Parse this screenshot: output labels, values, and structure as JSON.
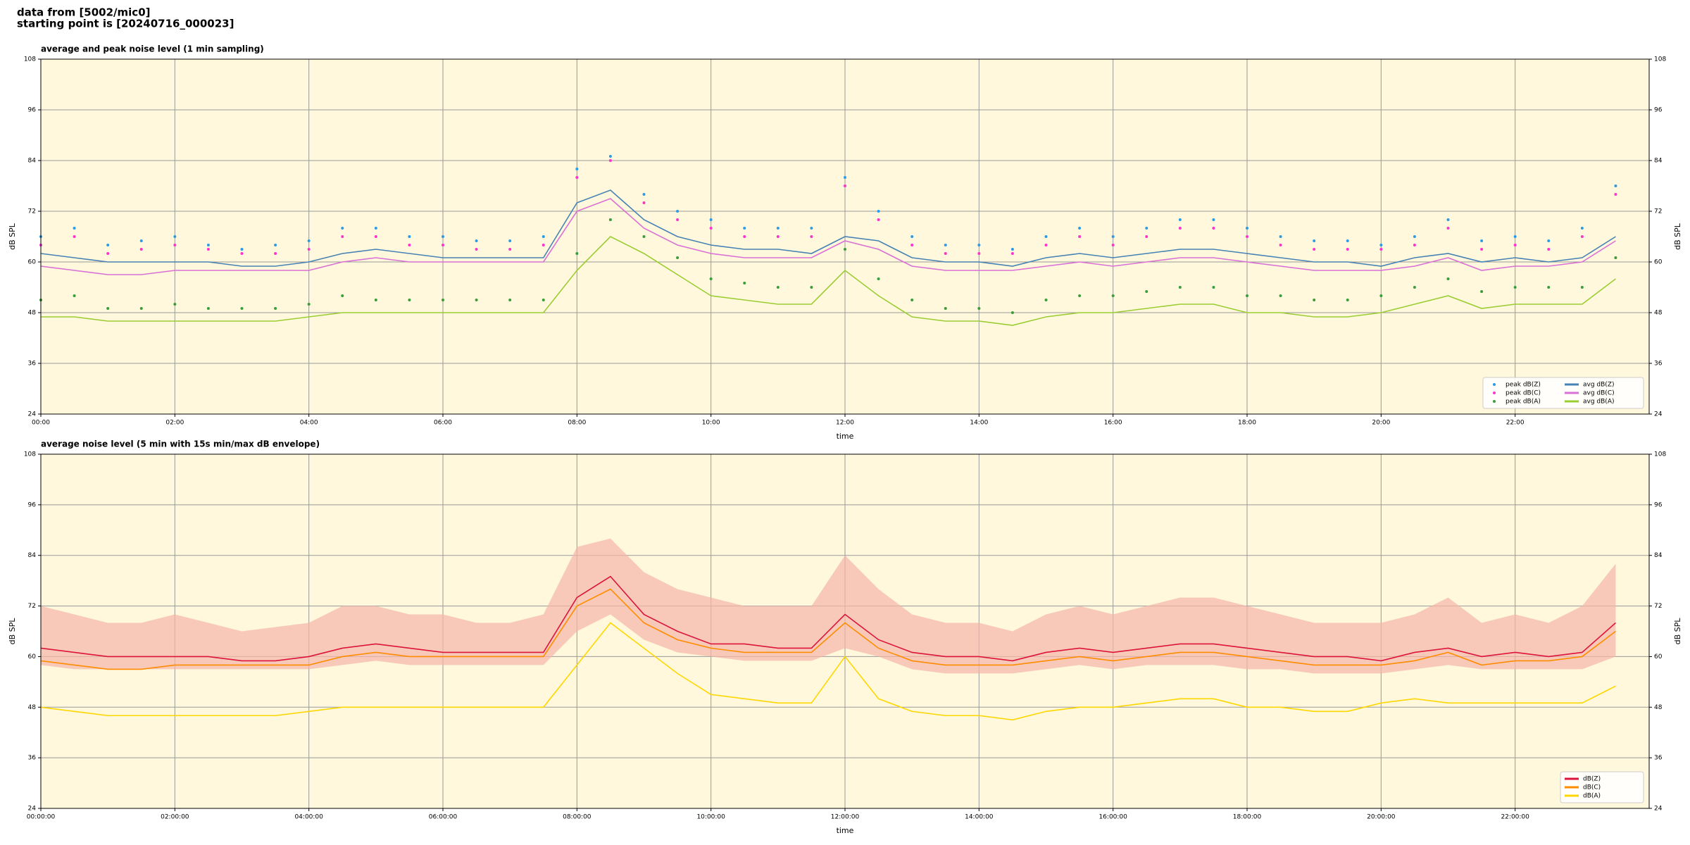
{
  "header": {
    "title": "data from [5002/mic0]",
    "subtitle": "starting point is [20240716_000023]"
  },
  "chart_data": [
    {
      "type": "line",
      "title": "average and peak noise level (1 min sampling)",
      "xlabel": "time",
      "ylabel": "dB SPL",
      "x": [
        0,
        0.5,
        1,
        1.5,
        2,
        2.5,
        3,
        3.5,
        4,
        4.5,
        5,
        5.5,
        6,
        6.5,
        7,
        7.5,
        8,
        8.5,
        9,
        9.5,
        10,
        10.5,
        11,
        11.5,
        12,
        12.5,
        13,
        13.5,
        14,
        14.5,
        15,
        15.5,
        16,
        16.5,
        17,
        17.5,
        18,
        18.5,
        19,
        19.5,
        20,
        20.5,
        21,
        21.5,
        22,
        22.5,
        23,
        23.5
      ],
      "xlim": [
        0,
        24
      ],
      "xticks": [
        {
          "value": 0,
          "label": "00:00"
        },
        {
          "value": 2,
          "label": "02:00"
        },
        {
          "value": 4,
          "label": "04:00"
        },
        {
          "value": 6,
          "label": "06:00"
        },
        {
          "value": 8,
          "label": "08:00"
        },
        {
          "value": 10,
          "label": "10:00"
        },
        {
          "value": 12,
          "label": "12:00"
        },
        {
          "value": 14,
          "label": "14:00"
        },
        {
          "value": 16,
          "label": "16:00"
        },
        {
          "value": 18,
          "label": "18:00"
        },
        {
          "value": 20,
          "label": "20:00"
        },
        {
          "value": 22,
          "label": "22:00"
        }
      ],
      "ylim": [
        24,
        108
      ],
      "yticks": [
        24,
        36,
        48,
        60,
        72,
        84,
        96,
        108
      ],
      "grid": true,
      "legend": "lower right",
      "series": [
        {
          "name": "peak dB(Z)",
          "type": "scatter",
          "color": "#2e9be6",
          "values": [
            66,
            68,
            64,
            65,
            66,
            64,
            63,
            64,
            65,
            68,
            68,
            66,
            66,
            65,
            65,
            66,
            82,
            85,
            76,
            72,
            70,
            68,
            68,
            68,
            80,
            72,
            66,
            64,
            64,
            63,
            66,
            68,
            66,
            68,
            70,
            70,
            68,
            66,
            65,
            65,
            64,
            66,
            70,
            65,
            66,
            65,
            68,
            78
          ]
        },
        {
          "name": "peak dB(C)",
          "type": "scatter",
          "color": "#ff33cc",
          "values": [
            64,
            66,
            62,
            63,
            64,
            63,
            62,
            62,
            63,
            66,
            66,
            64,
            64,
            63,
            63,
            64,
            80,
            84,
            74,
            70,
            68,
            66,
            66,
            66,
            78,
            70,
            64,
            62,
            62,
            62,
            64,
            66,
            64,
            66,
            68,
            68,
            66,
            64,
            63,
            63,
            63,
            64,
            68,
            63,
            64,
            63,
            66,
            76
          ]
        },
        {
          "name": "peak dB(A)",
          "type": "scatter",
          "color": "#3a9d3a",
          "values": [
            51,
            52,
            49,
            49,
            50,
            49,
            49,
            49,
            50,
            52,
            51,
            51,
            51,
            51,
            51,
            51,
            62,
            70,
            66,
            61,
            56,
            55,
            54,
            54,
            63,
            56,
            51,
            49,
            49,
            48,
            51,
            52,
            52,
            53,
            54,
            54,
            52,
            52,
            51,
            51,
            52,
            54,
            56,
            53,
            54,
            54,
            54,
            61
          ]
        },
        {
          "name": "avg dB(Z)",
          "type": "line",
          "color": "#4682b4",
          "values": [
            62,
            61,
            60,
            60,
            60,
            60,
            59,
            59,
            60,
            62,
            63,
            62,
            61,
            61,
            61,
            61,
            74,
            77,
            70,
            66,
            64,
            63,
            63,
            62,
            66,
            65,
            61,
            60,
            60,
            59,
            61,
            62,
            61,
            62,
            63,
            63,
            62,
            61,
            60,
            60,
            59,
            61,
            62,
            60,
            61,
            60,
            61,
            66
          ]
        },
        {
          "name": "avg dB(C)",
          "type": "line",
          "color": "#da70d6",
          "values": [
            59,
            58,
            57,
            57,
            58,
            58,
            58,
            58,
            58,
            60,
            61,
            60,
            60,
            60,
            60,
            60,
            72,
            75,
            68,
            64,
            62,
            61,
            61,
            61,
            65,
            63,
            59,
            58,
            58,
            58,
            59,
            60,
            59,
            60,
            61,
            61,
            60,
            59,
            58,
            58,
            58,
            59,
            61,
            58,
            59,
            59,
            60,
            65
          ]
        },
        {
          "name": "avg dB(A)",
          "type": "line",
          "color": "#9acd32",
          "values": [
            47,
            47,
            46,
            46,
            46,
            46,
            46,
            46,
            47,
            48,
            48,
            48,
            48,
            48,
            48,
            48,
            58,
            66,
            62,
            57,
            52,
            51,
            50,
            50,
            58,
            52,
            47,
            46,
            46,
            45,
            47,
            48,
            48,
            49,
            50,
            50,
            48,
            48,
            47,
            47,
            48,
            50,
            52,
            49,
            50,
            50,
            50,
            56
          ]
        }
      ]
    },
    {
      "type": "line",
      "title": "average noise level (5 min with 15s min/max dB envelope)",
      "xlabel": "time",
      "ylabel": "dB SPL",
      "x": [
        0,
        0.5,
        1,
        1.5,
        2,
        2.5,
        3,
        3.5,
        4,
        4.5,
        5,
        5.5,
        6,
        6.5,
        7,
        7.5,
        8,
        8.5,
        9,
        9.5,
        10,
        10.5,
        11,
        11.5,
        12,
        12.5,
        13,
        13.5,
        14,
        14.5,
        15,
        15.5,
        16,
        16.5,
        17,
        17.5,
        18,
        18.5,
        19,
        19.5,
        20,
        20.5,
        21,
        21.5,
        22,
        22.5,
        23,
        23.5
      ],
      "xlim": [
        0,
        24
      ],
      "xticks": [
        {
          "value": 0,
          "label": "00:00:00"
        },
        {
          "value": 2,
          "label": "02:00:00"
        },
        {
          "value": 4,
          "label": "04:00:00"
        },
        {
          "value": 6,
          "label": "06:00:00"
        },
        {
          "value": 8,
          "label": "08:00:00"
        },
        {
          "value": 10,
          "label": "10:00:00"
        },
        {
          "value": 12,
          "label": "12:00:00"
        },
        {
          "value": 14,
          "label": "14:00:00"
        },
        {
          "value": 16,
          "label": "16:00:00"
        },
        {
          "value": 18,
          "label": "18:00:00"
        },
        {
          "value": 20,
          "label": "20:00:00"
        },
        {
          "value": 22,
          "label": "22:00:00"
        }
      ],
      "ylim": [
        24,
        108
      ],
      "yticks": [
        24,
        36,
        48,
        60,
        72,
        84,
        96,
        108
      ],
      "grid": true,
      "legend": "lower right",
      "envelope": {
        "color": "#f5b5a8",
        "lower": [
          58,
          57,
          57,
          57,
          57,
          57,
          57,
          57,
          57,
          58,
          59,
          58,
          58,
          58,
          58,
          58,
          66,
          70,
          64,
          61,
          60,
          59,
          59,
          59,
          62,
          60,
          57,
          56,
          56,
          56,
          57,
          58,
          57,
          58,
          58,
          58,
          57,
          57,
          56,
          56,
          56,
          57,
          58,
          57,
          57,
          57,
          57,
          60
        ],
        "upper": [
          72,
          70,
          68,
          68,
          70,
          68,
          66,
          67,
          68,
          72,
          72,
          70,
          70,
          68,
          68,
          70,
          86,
          88,
          80,
          76,
          74,
          72,
          72,
          72,
          84,
          76,
          70,
          68,
          68,
          66,
          70,
          72,
          70,
          72,
          74,
          74,
          72,
          70,
          68,
          68,
          68,
          70,
          74,
          68,
          70,
          68,
          72,
          82
        ]
      },
      "series": [
        {
          "name": "dB(Z)",
          "type": "line",
          "color": "#dc143c",
          "values": [
            62,
            61,
            60,
            60,
            60,
            60,
            59,
            59,
            60,
            62,
            63,
            62,
            61,
            61,
            61,
            61,
            74,
            79,
            70,
            66,
            63,
            63,
            62,
            62,
            70,
            64,
            61,
            60,
            60,
            59,
            61,
            62,
            61,
            62,
            63,
            63,
            62,
            61,
            60,
            60,
            59,
            61,
            62,
            60,
            61,
            60,
            61,
            68
          ]
        },
        {
          "name": "dB(C)",
          "type": "line",
          "color": "#ff8c00",
          "values": [
            59,
            58,
            57,
            57,
            58,
            58,
            58,
            58,
            58,
            60,
            61,
            60,
            60,
            60,
            60,
            60,
            72,
            76,
            68,
            64,
            62,
            61,
            61,
            61,
            68,
            62,
            59,
            58,
            58,
            58,
            59,
            60,
            59,
            60,
            61,
            61,
            60,
            59,
            58,
            58,
            58,
            59,
            61,
            58,
            59,
            59,
            60,
            66
          ]
        },
        {
          "name": "dB(A)",
          "type": "line",
          "color": "#ffd700",
          "values": [
            48,
            47,
            46,
            46,
            46,
            46,
            46,
            46,
            47,
            48,
            48,
            48,
            48,
            48,
            48,
            48,
            58,
            68,
            62,
            56,
            51,
            50,
            49,
            49,
            60,
            50,
            47,
            46,
            46,
            45,
            47,
            48,
            48,
            49,
            50,
            50,
            48,
            48,
            47,
            47,
            49,
            50,
            49,
            49,
            49,
            49,
            49,
            53
          ]
        }
      ]
    }
  ]
}
